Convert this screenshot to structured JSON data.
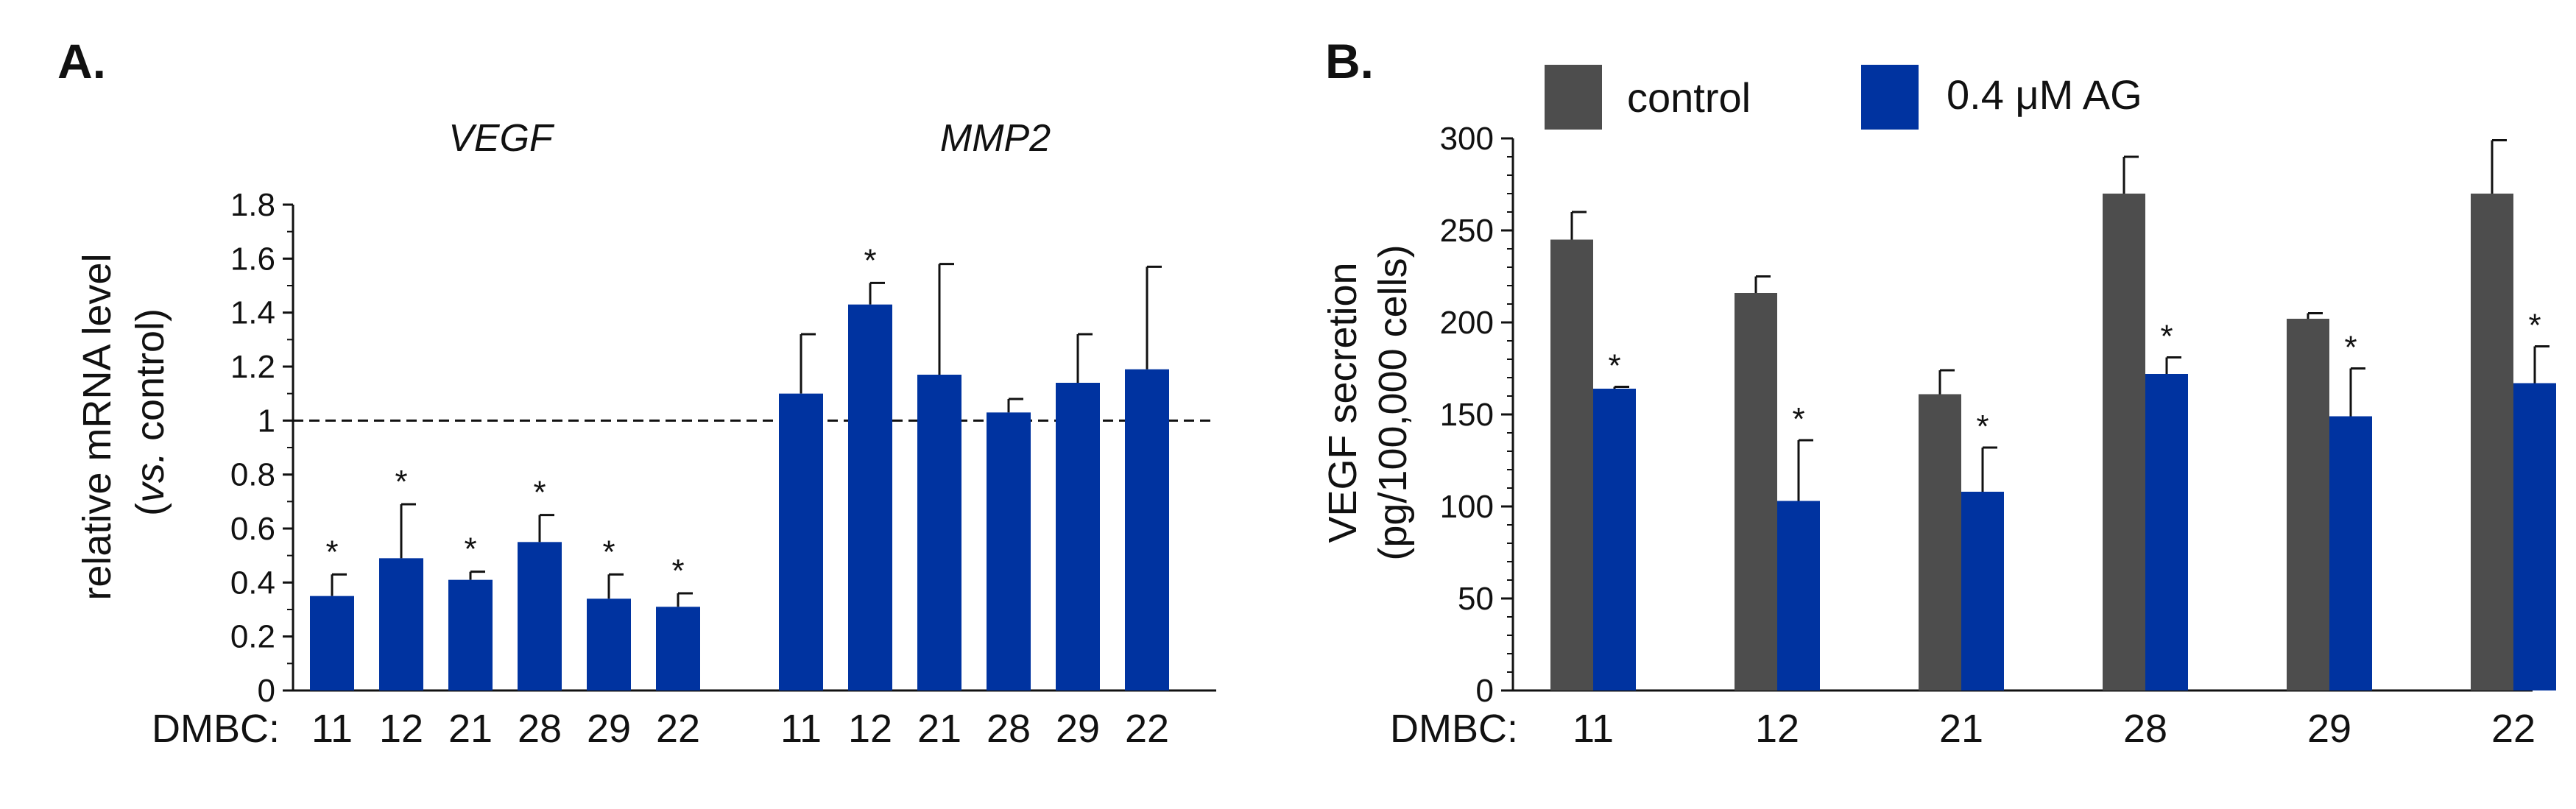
{
  "figure": {
    "panel_a_label": "A.",
    "panel_b_label": "B.",
    "colors": {
      "control": "#4d4d4d",
      "treated": "#0033a0",
      "axis": "#111111"
    }
  },
  "panel_a": {
    "ylabel_line1": "relative mRNA level",
    "ylabel_italic": "vs.",
    "ylabel_rest": " control)",
    "ylabel_paren": "(",
    "x_prefix": "DMBC:",
    "gene1": "VEGF",
    "gene2": "MMP2"
  },
  "panel_b": {
    "ylabel_line1": "VEGF secretion",
    "ylabel_line2": "(pg/100,000 cells)",
    "x_prefix": "DMBC:",
    "legend_control": "control",
    "legend_treated": "0.4 μM AG"
  },
  "chart_data": [
    {
      "type": "bar",
      "panel": "A",
      "title": "",
      "ylabel": "relative mRNA level (vs. control)",
      "ylim": [
        0,
        1.8
      ],
      "yticks": [
        0,
        0.2,
        0.4,
        0.6,
        0.8,
        1,
        1.2,
        1.4,
        1.6,
        1.8
      ],
      "ytick_labels": [
        "0",
        "0.2",
        "0.4",
        "0.6",
        "0.8",
        "1",
        "1.2",
        "1.4",
        "1.6",
        "1.8"
      ],
      "reference_line": 1,
      "groups": [
        {
          "name": "VEGF",
          "categories": [
            "11",
            "12",
            "21",
            "28",
            "29",
            "22"
          ],
          "values": [
            0.35,
            0.49,
            0.41,
            0.55,
            0.34,
            0.31
          ],
          "errors": [
            0.08,
            0.2,
            0.03,
            0.1,
            0.09,
            0.05
          ],
          "significant": [
            true,
            true,
            true,
            true,
            true,
            true
          ]
        },
        {
          "name": "MMP2",
          "categories": [
            "11",
            "12",
            "21",
            "28",
            "29",
            "22"
          ],
          "values": [
            1.1,
            1.43,
            1.17,
            1.03,
            1.14,
            1.19
          ],
          "errors": [
            0.22,
            0.08,
            0.41,
            0.05,
            0.18,
            0.38
          ],
          "significant": [
            false,
            true,
            false,
            false,
            false,
            false
          ]
        }
      ],
      "significance_marker": "*"
    },
    {
      "type": "bar",
      "panel": "B",
      "title": "",
      "ylabel": "VEGF secretion (pg/100,000 cells)",
      "ylim": [
        0,
        300
      ],
      "yticks": [
        0,
        50,
        100,
        150,
        200,
        250,
        300
      ],
      "ytick_labels": [
        "0",
        "50",
        "100",
        "150",
        "200",
        "250",
        "300"
      ],
      "categories": [
        "11",
        "12",
        "21",
        "28",
        "29",
        "22"
      ],
      "series": [
        {
          "name": "control",
          "values": [
            245,
            216,
            161,
            270,
            202,
            270
          ],
          "errors": [
            15,
            9,
            13,
            20,
            3,
            29
          ],
          "significant": [
            false,
            false,
            false,
            false,
            false,
            false
          ]
        },
        {
          "name": "0.4 μM AG",
          "values": [
            164,
            103,
            108,
            172,
            149,
            167
          ],
          "errors": [
            1,
            33,
            24,
            9,
            26,
            20
          ],
          "significant": [
            true,
            true,
            true,
            true,
            true,
            true
          ]
        }
      ],
      "legend": "top",
      "significance_marker": "*"
    }
  ]
}
